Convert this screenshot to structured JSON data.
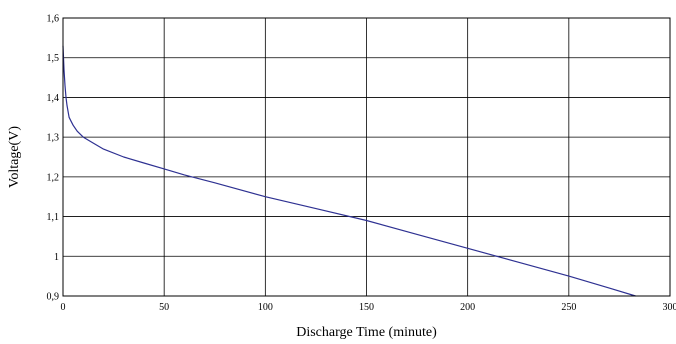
{
  "chart_data": {
    "type": "line",
    "title": "",
    "xlabel": "Discharge Time (minute)",
    "ylabel": "Voltage(V)",
    "xlim": [
      0,
      300
    ],
    "ylim": [
      0.9,
      1.6
    ],
    "grid": true,
    "x_ticks": [
      {
        "value": 0,
        "label": "0"
      },
      {
        "value": 50,
        "label": "50"
      },
      {
        "value": 100,
        "label": "100"
      },
      {
        "value": 150,
        "label": "150"
      },
      {
        "value": 200,
        "label": "200"
      },
      {
        "value": 250,
        "label": "250"
      },
      {
        "value": 300,
        "label": "300"
      }
    ],
    "y_ticks": [
      {
        "value": 0.9,
        "label": "0,9"
      },
      {
        "value": 1.0,
        "label": "1"
      },
      {
        "value": 1.1,
        "label": "1,1"
      },
      {
        "value": 1.2,
        "label": "1,2"
      },
      {
        "value": 1.3,
        "label": "1,3"
      },
      {
        "value": 1.4,
        "label": "1,4"
      },
      {
        "value": 1.5,
        "label": "1,5"
      },
      {
        "value": 1.6,
        "label": "1,6"
      }
    ],
    "series": [
      {
        "color": "#2e3192",
        "x": [
          0,
          0.5,
          1,
          1.5,
          2,
          3,
          4,
          5,
          7,
          10,
          15,
          20,
          30,
          40,
          50,
          60,
          75,
          100,
          125,
          150,
          175,
          200,
          225,
          250,
          270,
          283
        ],
        "y": [
          1.53,
          1.47,
          1.43,
          1.4,
          1.38,
          1.35,
          1.34,
          1.33,
          1.315,
          1.3,
          1.285,
          1.27,
          1.25,
          1.235,
          1.22,
          1.205,
          1.185,
          1.15,
          1.12,
          1.09,
          1.055,
          1.02,
          0.985,
          0.95,
          0.92,
          0.9
        ]
      }
    ]
  }
}
